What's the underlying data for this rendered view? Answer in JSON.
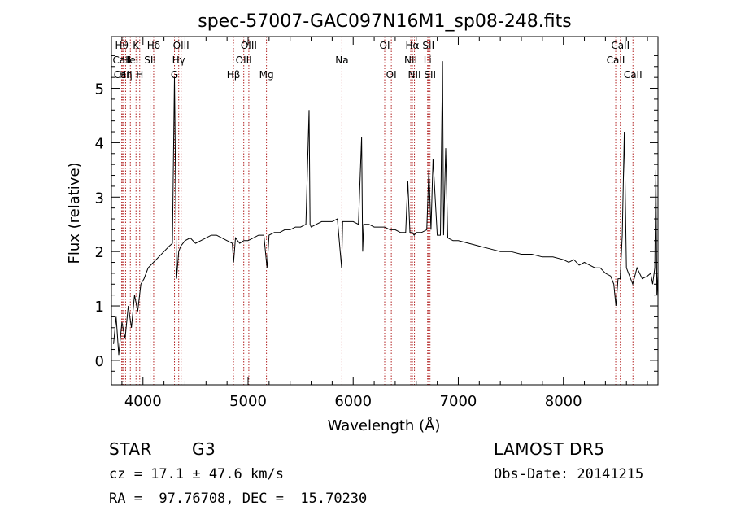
{
  "chart_data": {
    "type": "line",
    "title": "spec-57007-GAC097N16M1_sp08-248.fits",
    "xlabel": "Wavelength (Å)",
    "ylabel": "Flux (relative)",
    "xlim": [
      3700,
      8900
    ],
    "ylim": [
      -0.45,
      5.95
    ],
    "xticks": [
      4000,
      5000,
      6000,
      7000,
      8000
    ],
    "yticks": [
      0,
      1,
      2,
      3,
      4,
      5
    ],
    "line_color": "#000000",
    "marker_color": "#b22222",
    "series": [
      {
        "x": [
          3720,
          3745,
          3770,
          3800,
          3830,
          3860,
          3890,
          3920,
          3950,
          3980,
          4010,
          4050,
          4100,
          4150,
          4200,
          4250,
          4280,
          4300,
          4320,
          4340,
          4360,
          4400,
          4450,
          4500,
          4550,
          4600,
          4650,
          4700,
          4750,
          4800,
          4850,
          4862,
          4880,
          4920,
          4960,
          5000,
          5050,
          5100,
          5150,
          5180,
          5200,
          5250,
          5300,
          5350,
          5400,
          5450,
          5500,
          5550,
          5580,
          5590,
          5600,
          5650,
          5700,
          5750,
          5800,
          5850,
          5890,
          5900,
          5950,
          6000,
          6050,
          6080,
          6090,
          6100,
          6150,
          6200,
          6250,
          6300,
          6350,
          6400,
          6450,
          6500,
          6520,
          6540,
          6563,
          6580,
          6600,
          6650,
          6700,
          6720,
          6740,
          6760,
          6800,
          6830,
          6850,
          6860,
          6880,
          6900,
          6950,
          7000,
          7100,
          7200,
          7300,
          7400,
          7500,
          7600,
          7700,
          7800,
          7900,
          8000,
          8050,
          8100,
          8150,
          8200,
          8250,
          8300,
          8350,
          8400,
          8450,
          8480,
          8500,
          8520,
          8540,
          8560,
          8580,
          8600,
          8620,
          8640,
          8660,
          8700,
          8750,
          8800,
          8830,
          8850,
          8870,
          8880,
          8890,
          8900
        ],
        "y": [
          0.3,
          0.8,
          0.1,
          0.7,
          0.4,
          1.0,
          0.6,
          1.2,
          0.9,
          1.4,
          1.5,
          1.7,
          1.8,
          1.9,
          2.0,
          2.1,
          2.15,
          5.2,
          1.5,
          2.0,
          2.1,
          2.2,
          2.25,
          2.15,
          2.2,
          2.25,
          2.3,
          2.3,
          2.25,
          2.2,
          2.15,
          1.8,
          2.25,
          2.15,
          2.2,
          2.2,
          2.25,
          2.3,
          2.3,
          1.7,
          2.3,
          2.35,
          2.35,
          2.4,
          2.4,
          2.45,
          2.45,
          2.5,
          4.6,
          2.5,
          2.45,
          2.5,
          2.55,
          2.55,
          2.55,
          2.6,
          1.7,
          2.55,
          2.55,
          2.55,
          2.5,
          4.1,
          2.0,
          2.5,
          2.5,
          2.45,
          2.45,
          2.45,
          2.4,
          2.4,
          2.35,
          2.35,
          3.3,
          2.35,
          2.35,
          2.3,
          2.35,
          2.35,
          2.4,
          3.5,
          2.4,
          3.7,
          2.3,
          2.3,
          5.5,
          2.3,
          3.9,
          2.25,
          2.2,
          2.2,
          2.15,
          2.1,
          2.05,
          2.0,
          2.0,
          1.95,
          1.95,
          1.9,
          1.9,
          1.85,
          1.8,
          1.85,
          1.75,
          1.8,
          1.75,
          1.7,
          1.7,
          1.6,
          1.55,
          1.4,
          1.0,
          1.5,
          1.5,
          2.3,
          4.2,
          1.7,
          1.6,
          1.5,
          1.4,
          1.7,
          1.5,
          1.55,
          1.6,
          1.4,
          1.7,
          3.5,
          1.2,
          1.6
        ]
      }
    ],
    "line_labels": [
      {
        "label": "Hθ",
        "x": 3798,
        "row": 0
      },
      {
        "label": "CaII",
        "x": 3800,
        "row": 1
      },
      {
        "label": "CaII",
        "x": 3810,
        "row": 2
      },
      {
        "label": "Hη",
        "x": 3835,
        "row": 2
      },
      {
        "label": "HeI",
        "x": 3880,
        "row": 1
      },
      {
        "label": "K",
        "x": 3934,
        "row": 0
      },
      {
        "label": "H",
        "x": 3969,
        "row": 2
      },
      {
        "label": "SII",
        "x": 4068,
        "row": 1
      },
      {
        "label": "Hδ",
        "x": 4102,
        "row": 0
      },
      {
        "label": "G",
        "x": 4300,
        "row": 2
      },
      {
        "label": "Hγ",
        "x": 4340,
        "row": 1
      },
      {
        "label": "OIII",
        "x": 4363,
        "row": 0
      },
      {
        "label": "Hβ",
        "x": 4861,
        "row": 2
      },
      {
        "label": "OIII",
        "x": 4959,
        "row": 1
      },
      {
        "label": "OIII",
        "x": 5007,
        "row": 0
      },
      {
        "label": "Mg",
        "x": 5175,
        "row": 2
      },
      {
        "label": "Na",
        "x": 5893,
        "row": 1
      },
      {
        "label": "OI",
        "x": 6300,
        "row": 0
      },
      {
        "label": "OI",
        "x": 6363,
        "row": 2
      },
      {
        "label": "NII",
        "x": 6548,
        "row": 1
      },
      {
        "label": "Hα",
        "x": 6563,
        "row": 0
      },
      {
        "label": "NII",
        "x": 6583,
        "row": 2
      },
      {
        "label": "Li",
        "x": 6708,
        "row": 1
      },
      {
        "label": "SII",
        "x": 6716,
        "row": 0
      },
      {
        "label": "SII",
        "x": 6731,
        "row": 2
      },
      {
        "label": "CaII",
        "x": 8498,
        "row": 1
      },
      {
        "label": "CaII",
        "x": 8542,
        "row": 0
      },
      {
        "label": "CaII",
        "x": 8662,
        "row": 2
      }
    ]
  },
  "info": {
    "object_class": "STAR",
    "subclass": "G3",
    "survey": "LAMOST DR5",
    "redshift": "cz = 17.1 ± 47.6 km/s",
    "obs_date": "Obs-Date: 20141215",
    "coords": "RA =  97.76708, DEC =  15.70230"
  }
}
